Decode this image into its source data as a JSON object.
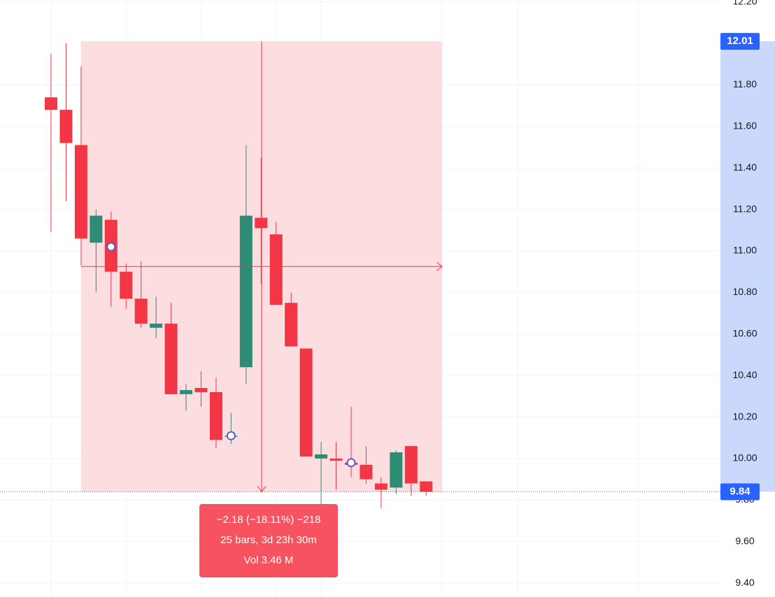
{
  "chart_data": {
    "type": "candlestick",
    "up_color": "#2e8b74",
    "down_color": "#f23645",
    "open": [
      11.74,
      11.68,
      11.51,
      11.04,
      11.15,
      10.9,
      10.77,
      10.63,
      10.65,
      10.31,
      10.34,
      10.32,
      10.11,
      10.44,
      11.16,
      11.08,
      10.75,
      10.53,
      10.0,
      10.0,
      9.98,
      9.97,
      9.88,
      9.86,
      10.06,
      9.89
    ],
    "high": [
      11.95,
      12.0,
      11.89,
      11.2,
      11.19,
      10.94,
      10.95,
      10.78,
      10.75,
      10.36,
      10.42,
      10.39,
      10.22,
      11.51,
      11.45,
      11.14,
      10.8,
      10.53,
      10.08,
      10.08,
      10.25,
      10.06,
      9.91,
      10.04,
      10.06,
      9.89
    ],
    "low": [
      11.09,
      11.24,
      10.93,
      10.8,
      10.73,
      10.72,
      10.63,
      10.58,
      10.31,
      10.23,
      10.25,
      10.05,
      10.07,
      10.36,
      10.84,
      10.74,
      10.54,
      10.01,
      9.78,
      9.85,
      9.91,
      9.88,
      9.76,
      9.83,
      9.82,
      9.82
    ],
    "close": [
      11.68,
      11.52,
      11.06,
      11.17,
      10.9,
      10.77,
      10.65,
      10.65,
      10.31,
      10.33,
      10.32,
      10.09,
      10.11,
      11.17,
      11.11,
      10.74,
      10.54,
      10.01,
      10.02,
      9.99,
      9.97,
      9.9,
      9.85,
      10.03,
      9.88,
      9.84
    ],
    "markers": [
      {
        "bar": 4,
        "price": 11.02
      },
      {
        "bar": 12,
        "price": 10.11
      },
      {
        "bar": 20,
        "price": 9.98
      }
    ],
    "ylim": [
      9.333,
      12.209
    ],
    "yticks": [
      {
        "value": 12.2,
        "label": "12.20"
      },
      {
        "value": 11.8,
        "label": "11.80"
      },
      {
        "value": 11.6,
        "label": "11.60"
      },
      {
        "value": 11.4,
        "label": "11.40"
      },
      {
        "value": 11.2,
        "label": "11.20"
      },
      {
        "value": 11,
        "label": "11.00"
      },
      {
        "value": 10.8,
        "label": "10.80"
      },
      {
        "value": 10.6,
        "label": "10.60"
      },
      {
        "value": 10.4,
        "label": "10.40"
      },
      {
        "value": 10.2,
        "label": "10.20"
      },
      {
        "value": 10,
        "label": "10.00"
      },
      {
        "value": 9.8,
        "label": "9.80"
      },
      {
        "value": 9.6,
        "label": "9.60"
      },
      {
        "value": 9.4,
        "label": "9.40"
      }
    ],
    "grid": true,
    "measure": {
      "start_price": {
        "value": 12.01,
        "label": "12.01"
      },
      "end_price": {
        "value": 9.84,
        "label": "9.84"
      },
      "start_bar": 2,
      "end_bar": 26,
      "lines": [
        "−2.18 (−18.11%) −218",
        "25 bars, 3d 23h 30m",
        "Vol 3.46 M"
      ]
    }
  }
}
